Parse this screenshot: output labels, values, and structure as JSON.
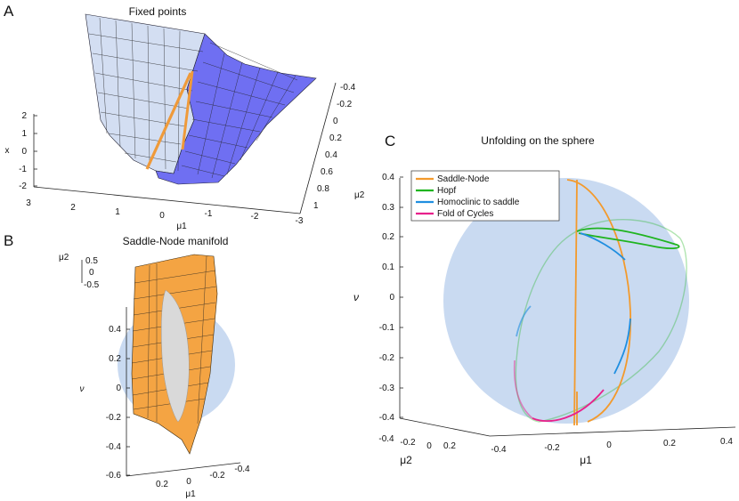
{
  "chart_data": [
    {
      "panel": "A",
      "type": "surface",
      "title": "Fixed points",
      "xlabel": "μ1",
      "ylabel": "μ2",
      "zlabel": "x",
      "x_ticks": [
        "3",
        "2",
        "1",
        "0",
        "-1",
        "-2",
        "-3"
      ],
      "y_ticks": [
        "-0.4",
        "-0.2",
        "0",
        "0.2",
        "0.4",
        "0.6",
        "0.8",
        "1"
      ],
      "z_ticks": [
        "2",
        "1",
        "0",
        "-1",
        "-2"
      ],
      "colors": {
        "surface_light": "#d3def2",
        "surface_dark": "#6f6ff2",
        "curve": "#ef9a3a"
      }
    },
    {
      "panel": "B",
      "type": "surface",
      "title": "Saddle-Node manifold",
      "xlabel": "μ1",
      "ylabel": "μ2",
      "zlabel": "ν",
      "x_ticks": [
        "0.2",
        "0",
        "-0.2",
        "-0.4"
      ],
      "y_ticks": [
        "0.5",
        "0",
        "-0.5"
      ],
      "z_ticks": [
        "0.4",
        "0.2",
        "0",
        "-0.2",
        "-0.4",
        "-0.6"
      ],
      "colors": {
        "manifold": "#f4a443",
        "sphere": "#c9daf1",
        "intersection": "#d9d9d9"
      }
    },
    {
      "panel": "C",
      "type": "line3d",
      "title": "Unfolding on the sphere",
      "xlabel": "μ1",
      "ylabel": "μ2",
      "zlabel": "ν",
      "x_ticks": [
        "-0.4",
        "-0.2",
        "0",
        "0.2",
        "0.4"
      ],
      "y_ticks": [
        "-0.4",
        "-0.2",
        "0",
        "0.2"
      ],
      "z_ticks": [
        "0.4",
        "0.3",
        "0.2",
        "0.1",
        "0",
        "-0.1",
        "-0.2",
        "-0.3",
        "-0.4"
      ],
      "zlim": [
        -0.4,
        0.4
      ],
      "legend_position": "top-left",
      "series": [
        {
          "name": "Saddle-Node",
          "color": "#f39a2c"
        },
        {
          "name": "Hopf",
          "color": "#1fb41f"
        },
        {
          "name": "Homoclinic to saddle",
          "color": "#1f8ee0"
        },
        {
          "name": "Fold of Cycles",
          "color": "#e8218c"
        }
      ],
      "colors": {
        "sphere": "#c9daf1"
      }
    }
  ]
}
